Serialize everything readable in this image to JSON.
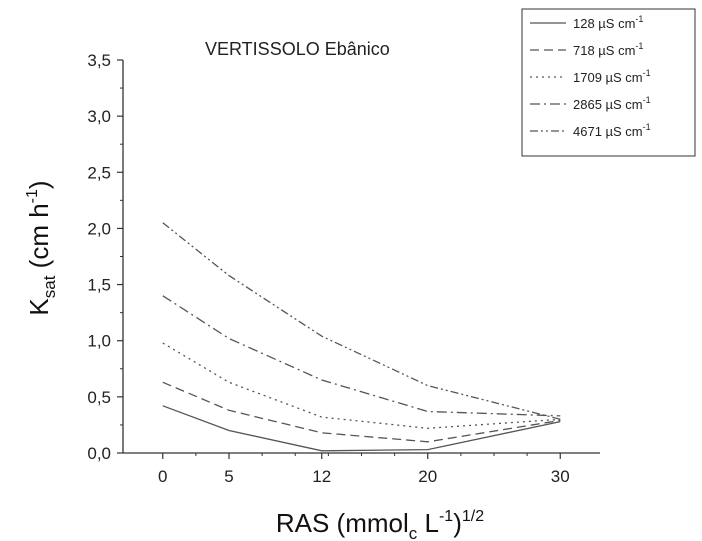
{
  "chart_data": {
    "type": "line",
    "title": "VERTISSOLO Ebânico",
    "xlabel": {
      "main": "RAS (mmol",
      "sub": "c",
      "mid": " L",
      "sup1": "-1",
      "close": ")",
      "sup2": "1/2"
    },
    "ylabel": {
      "main": "K",
      "sub": "sat",
      "mid": " (cm h",
      "sup": "-1",
      "close": ")"
    },
    "x": [
      0,
      5,
      12,
      20,
      30
    ],
    "x_ticks": [
      "0",
      "5",
      "12",
      "20",
      "30"
    ],
    "y_ticks": [
      "0,0",
      "0,5",
      "1,0",
      "1,5",
      "2,0",
      "2,5",
      "3,0",
      "3,5"
    ],
    "ylim": [
      0,
      3.5
    ],
    "legend_position": "top-right",
    "series": [
      {
        "name": "128 µS cm",
        "sup": "-1",
        "dash": "solid",
        "values": [
          0.42,
          0.2,
          0.02,
          0.03,
          0.28
        ]
      },
      {
        "name": "718 µS cm",
        "sup": "-1",
        "dash": "dashed",
        "values": [
          0.63,
          0.38,
          0.18,
          0.1,
          0.29
        ]
      },
      {
        "name": "1709 µS cm",
        "sup": "-1",
        "dash": "dotted",
        "values": [
          0.98,
          0.63,
          0.32,
          0.22,
          0.3
        ]
      },
      {
        "name": "2865 µS cm",
        "sup": "-1",
        "dash": "dash-dot",
        "values": [
          1.4,
          1.02,
          0.65,
          0.37,
          0.33
        ]
      },
      {
        "name": "4671 µS cm",
        "sup": "-1",
        "dash": "dash-dot-dot",
        "values": [
          2.05,
          1.58,
          1.04,
          0.6,
          0.3
        ]
      }
    ],
    "colors": {
      "line": "#555555",
      "axis": "#333333"
    }
  }
}
